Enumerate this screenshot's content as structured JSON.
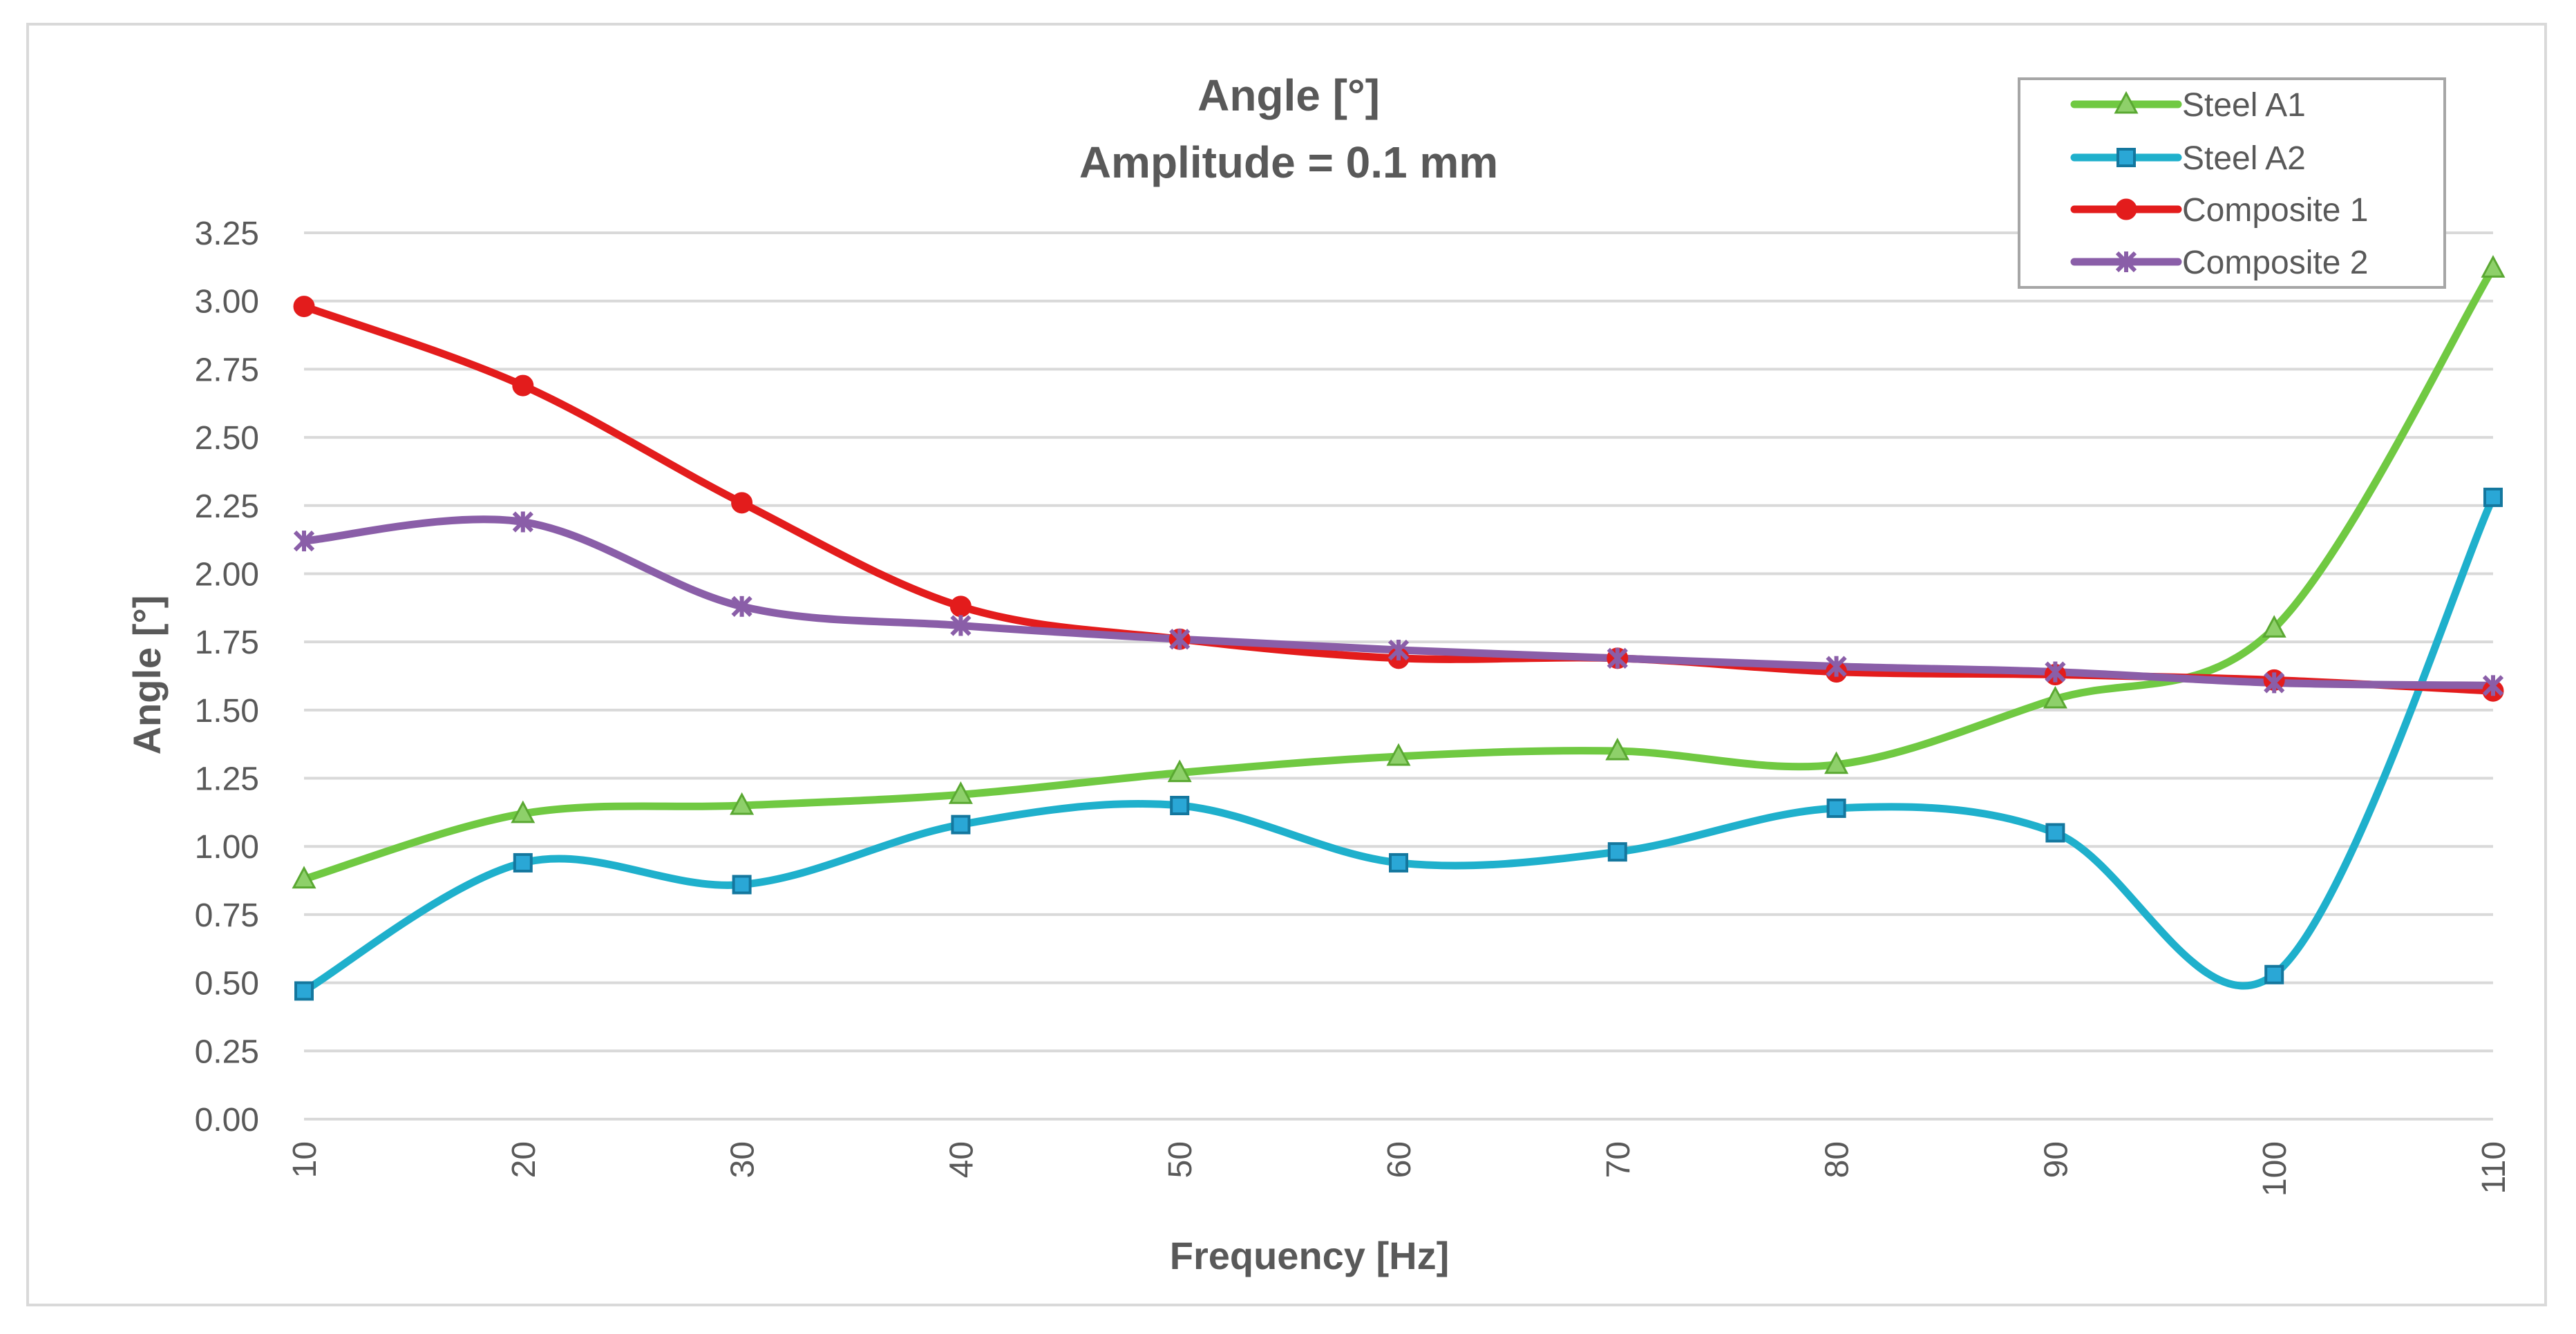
{
  "chart_data": {
    "type": "line",
    "title": "Angle [°]",
    "subtitle": "Amplitude = 0.1 mm",
    "xlabel": "Frequency [Hz]",
    "ylabel": "Angle [°]",
    "x": [
      10,
      20,
      30,
      40,
      50,
      60,
      70,
      80,
      90,
      100,
      110
    ],
    "ylim": [
      0,
      3.25
    ],
    "yticks": [
      0.0,
      0.25,
      0.5,
      0.75,
      1.0,
      1.25,
      1.5,
      1.75,
      2.0,
      2.25,
      2.5,
      2.75,
      3.0,
      3.25
    ],
    "ytick_labels": [
      "0.00",
      "0.25",
      "0.50",
      "0.75",
      "1.00",
      "1.25",
      "1.50",
      "1.75",
      "2.00",
      "2.25",
      "2.50",
      "2.75",
      "3.00",
      "3.25"
    ],
    "xtick_labels": [
      "10",
      "20",
      "30",
      "40",
      "50",
      "60",
      "70",
      "80",
      "90",
      "100",
      "110"
    ],
    "grid": true,
    "legend_position": "top-right",
    "series": [
      {
        "name": "Steel A1",
        "color": "#70c942",
        "marker": "triangle",
        "values": [
          0.88,
          1.12,
          1.15,
          1.19,
          1.27,
          1.33,
          1.35,
          1.3,
          1.54,
          1.8,
          3.12
        ]
      },
      {
        "name": "Steel A2",
        "color": "#1fb0cc",
        "marker": "square",
        "values": [
          0.47,
          0.94,
          0.86,
          1.08,
          1.15,
          0.94,
          0.98,
          1.14,
          1.05,
          0.53,
          2.28
        ]
      },
      {
        "name": "Composite 1",
        "color": "#e31c1c",
        "marker": "circle",
        "values": [
          2.98,
          2.69,
          2.26,
          1.88,
          1.76,
          1.69,
          1.69,
          1.64,
          1.63,
          1.61,
          1.57
        ]
      },
      {
        "name": "Composite 2",
        "color": "#8a5ea8",
        "marker": "star",
        "values": [
          2.12,
          2.19,
          1.88,
          1.81,
          1.76,
          1.72,
          1.69,
          1.66,
          1.64,
          1.6,
          1.59
        ]
      }
    ]
  }
}
